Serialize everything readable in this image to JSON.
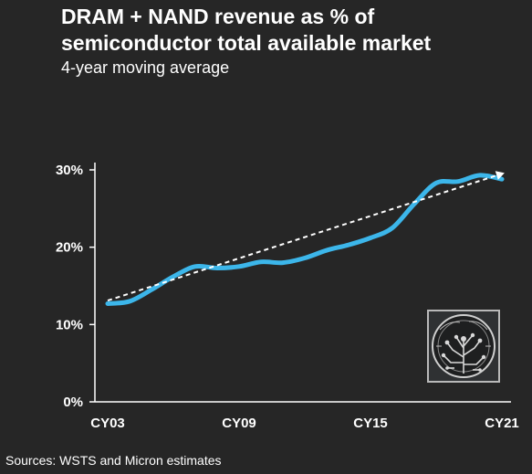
{
  "chart_data": {
    "type": "line",
    "title_lines": [
      "DRAM + NAND revenue as % of",
      "semiconductor total available market"
    ],
    "subtitle": "4-year moving average",
    "xlabel": "",
    "ylabel": "",
    "x_ticks": [
      "CY03",
      "CY09",
      "CY15",
      "CY21"
    ],
    "y_ticks": [
      "0%",
      "10%",
      "20%",
      "30%"
    ],
    "ylim": [
      0,
      30
    ],
    "xlim": [
      2003,
      2021
    ],
    "grid": false,
    "legend": "none",
    "series": [
      {
        "style": "solid",
        "color": "#3cb6ea",
        "x": [
          2003.0,
          2004.0,
          2005.0,
          2006.0,
          2007.0,
          2008.0,
          2009.0,
          2010.0,
          2011.0,
          2012.0,
          2013.0,
          2014.0,
          2015.0,
          2016.0,
          2017.0,
          2018.0,
          2019.0,
          2020.0,
          2021.0
        ],
        "values": [
          12.7,
          13.0,
          14.5,
          16.2,
          17.5,
          17.3,
          17.5,
          18.1,
          18.0,
          18.6,
          19.6,
          20.3,
          21.2,
          22.5,
          25.6,
          28.3,
          28.5,
          29.3,
          28.8
        ]
      },
      {
        "style": "dashed",
        "color": "#ffffff",
        "x": [
          2003.0,
          2021.0
        ],
        "values": [
          13.1,
          29.5
        ]
      }
    ],
    "colors": {
      "background": "#262626",
      "axis": "#ffffff",
      "line": "#3cb6ea",
      "trend": "#ffffff"
    }
  },
  "footer": {
    "source": "Sources: WSTS and Micron estimates"
  },
  "logo": {
    "icon": "circuit-tree-icon"
  }
}
